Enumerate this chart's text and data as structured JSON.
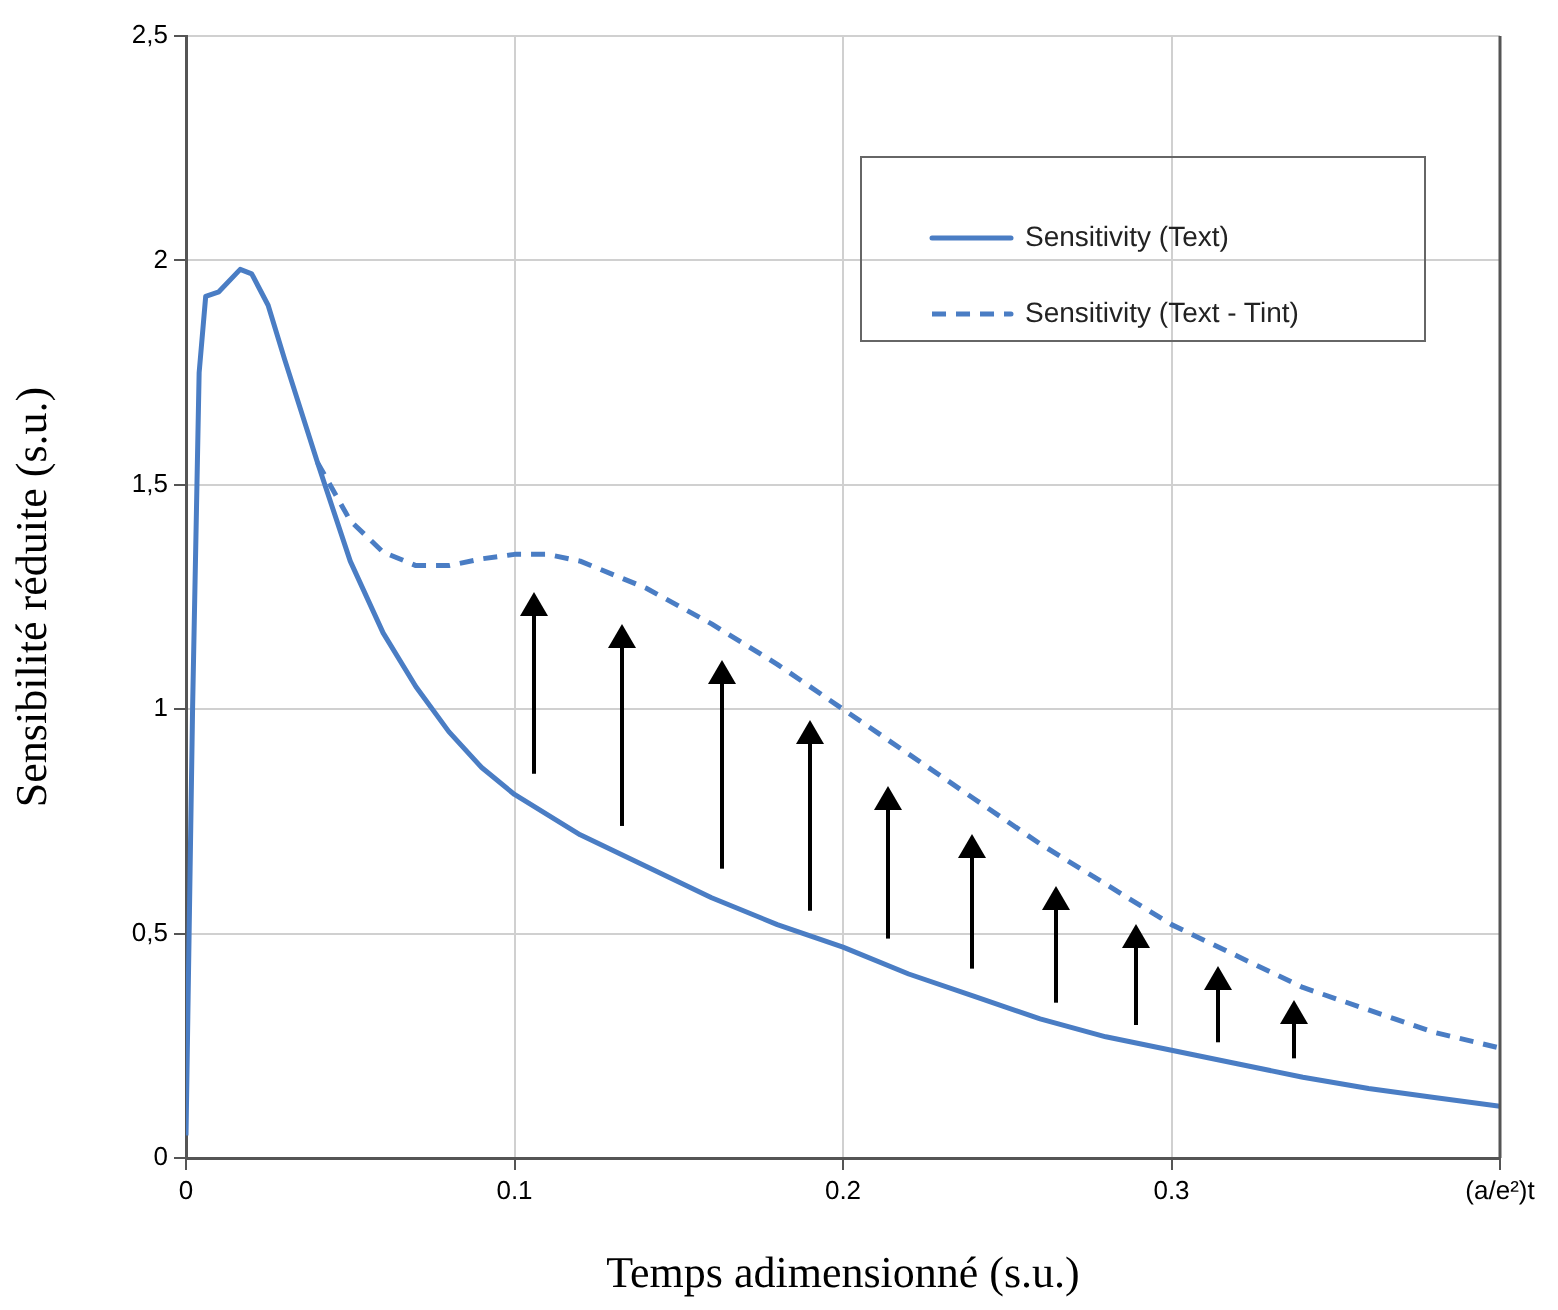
{
  "chart_data": {
    "type": "line",
    "xlabel": "Temps adimensionné (s.u.)",
    "ylabel": "Sensibilité réduite (s.u.)",
    "xlim": [
      0,
      0.4
    ],
    "xticks": [
      0,
      0.1,
      0.2,
      0.3,
      {
        "value": 0.4,
        "label": "(a/e²)t"
      }
    ],
    "ylim": [
      0,
      2.5
    ],
    "yticks": [
      0,
      {
        "value": 0.5,
        "label": "0,5"
      },
      1,
      {
        "value": 1.5,
        "label": "1,5"
      },
      2,
      {
        "value": 2.5,
        "label": "2,5"
      }
    ],
    "grid": true,
    "legend": "top right",
    "marker": "none",
    "series": [
      {
        "name": "Sensitivity (Text)",
        "color": "#4a7dc4",
        "line_style": "solid",
        "x": [
          0,
          0.002,
          0.004,
          0.006,
          0.01,
          0.0165,
          0.02,
          0.025,
          0.03,
          0.04,
          0.05,
          0.06,
          0.07,
          0.08,
          0.09,
          0.1,
          0.12,
          0.14,
          0.16,
          0.18,
          0.2,
          0.22,
          0.24,
          0.26,
          0.28,
          0.3,
          0.32,
          0.34,
          0.36,
          0.38,
          0.4
        ],
        "values": [
          0.05,
          1.0,
          1.75,
          1.92,
          1.93,
          1.98,
          1.97,
          1.9,
          1.78,
          1.55,
          1.33,
          1.17,
          1.05,
          0.95,
          0.87,
          0.81,
          0.72,
          0.65,
          0.58,
          0.52,
          0.47,
          0.41,
          0.36,
          0.31,
          0.27,
          0.24,
          0.21,
          0.18,
          0.155,
          0.135,
          0.115
        ]
      },
      {
        "name": "Sensitivity (Text - Tint)",
        "color": "#4a7dc4",
        "line_style": "dashed",
        "x": [
          0.04,
          0.05,
          0.06,
          0.07,
          0.08,
          0.09,
          0.1,
          0.11,
          0.12,
          0.14,
          0.16,
          0.18,
          0.2,
          0.22,
          0.24,
          0.26,
          0.28,
          0.3,
          0.32,
          0.34,
          0.36,
          0.38,
          0.4
        ],
        "values": [
          1.55,
          1.42,
          1.35,
          1.32,
          1.32,
          1.335,
          1.345,
          1.345,
          1.33,
          1.27,
          1.19,
          1.1,
          1.0,
          0.9,
          0.8,
          0.7,
          0.61,
          0.52,
          0.45,
          0.38,
          0.33,
          0.28,
          0.245
        ]
      }
    ]
  }
}
